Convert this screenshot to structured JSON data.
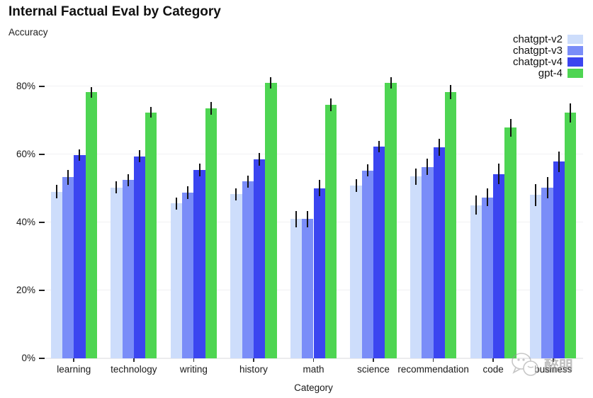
{
  "header": {
    "title": "Internal Factual Eval by Category",
    "subtitle": "Accuracy"
  },
  "watermark": {
    "text": "醉朋"
  },
  "chart_data": {
    "type": "bar",
    "title": "Internal Factual Eval by Category",
    "xlabel": "Category",
    "ylabel": "Accuracy",
    "grid": true,
    "legend_position": "top-right",
    "error_bars": true,
    "ylim": [
      0,
      87
    ],
    "y_ticks": [
      {
        "label": "0%",
        "value": 0
      },
      {
        "label": "20%",
        "value": 20
      },
      {
        "label": "40%",
        "value": 40
      },
      {
        "label": "60%",
        "value": 60
      },
      {
        "label": "80%",
        "value": 80
      }
    ],
    "categories": [
      "learning",
      "technology",
      "writing",
      "history",
      "math",
      "science",
      "recommendation",
      "code",
      "business"
    ],
    "series": [
      {
        "name": "chatgpt-v2",
        "color": "#cdddfb",
        "values": [
          49.0,
          50.2,
          45.5,
          48.2,
          41.0,
          50.8,
          53.4,
          45.0,
          48.0
        ],
        "errors": [
          2.0,
          1.8,
          1.8,
          1.8,
          2.4,
          1.8,
          2.4,
          2.8,
          3.3
        ]
      },
      {
        "name": "chatgpt-v3",
        "color": "#7a8df8",
        "values": [
          53.2,
          52.4,
          48.7,
          52.0,
          41.0,
          55.2,
          56.3,
          47.3,
          50.2
        ],
        "errors": [
          2.1,
          1.8,
          1.9,
          1.8,
          2.4,
          1.8,
          2.3,
          2.6,
          3.1
        ]
      },
      {
        "name": "chatgpt-v4",
        "color": "#3b45f0",
        "values": [
          59.8,
          59.4,
          55.4,
          58.5,
          50.0,
          62.2,
          62.0,
          54.2,
          57.8
        ],
        "errors": [
          1.7,
          1.7,
          1.9,
          1.9,
          2.4,
          1.7,
          2.5,
          3.0,
          3.0
        ]
      },
      {
        "name": "gpt-4",
        "color": "#4ed552",
        "values": [
          78.2,
          72.3,
          73.5,
          81.0,
          74.5,
          81.0,
          78.2,
          67.8,
          72.2
        ],
        "errors": [
          1.5,
          1.6,
          1.8,
          1.6,
          1.9,
          1.6,
          2.1,
          2.6,
          2.8
        ]
      }
    ]
  }
}
